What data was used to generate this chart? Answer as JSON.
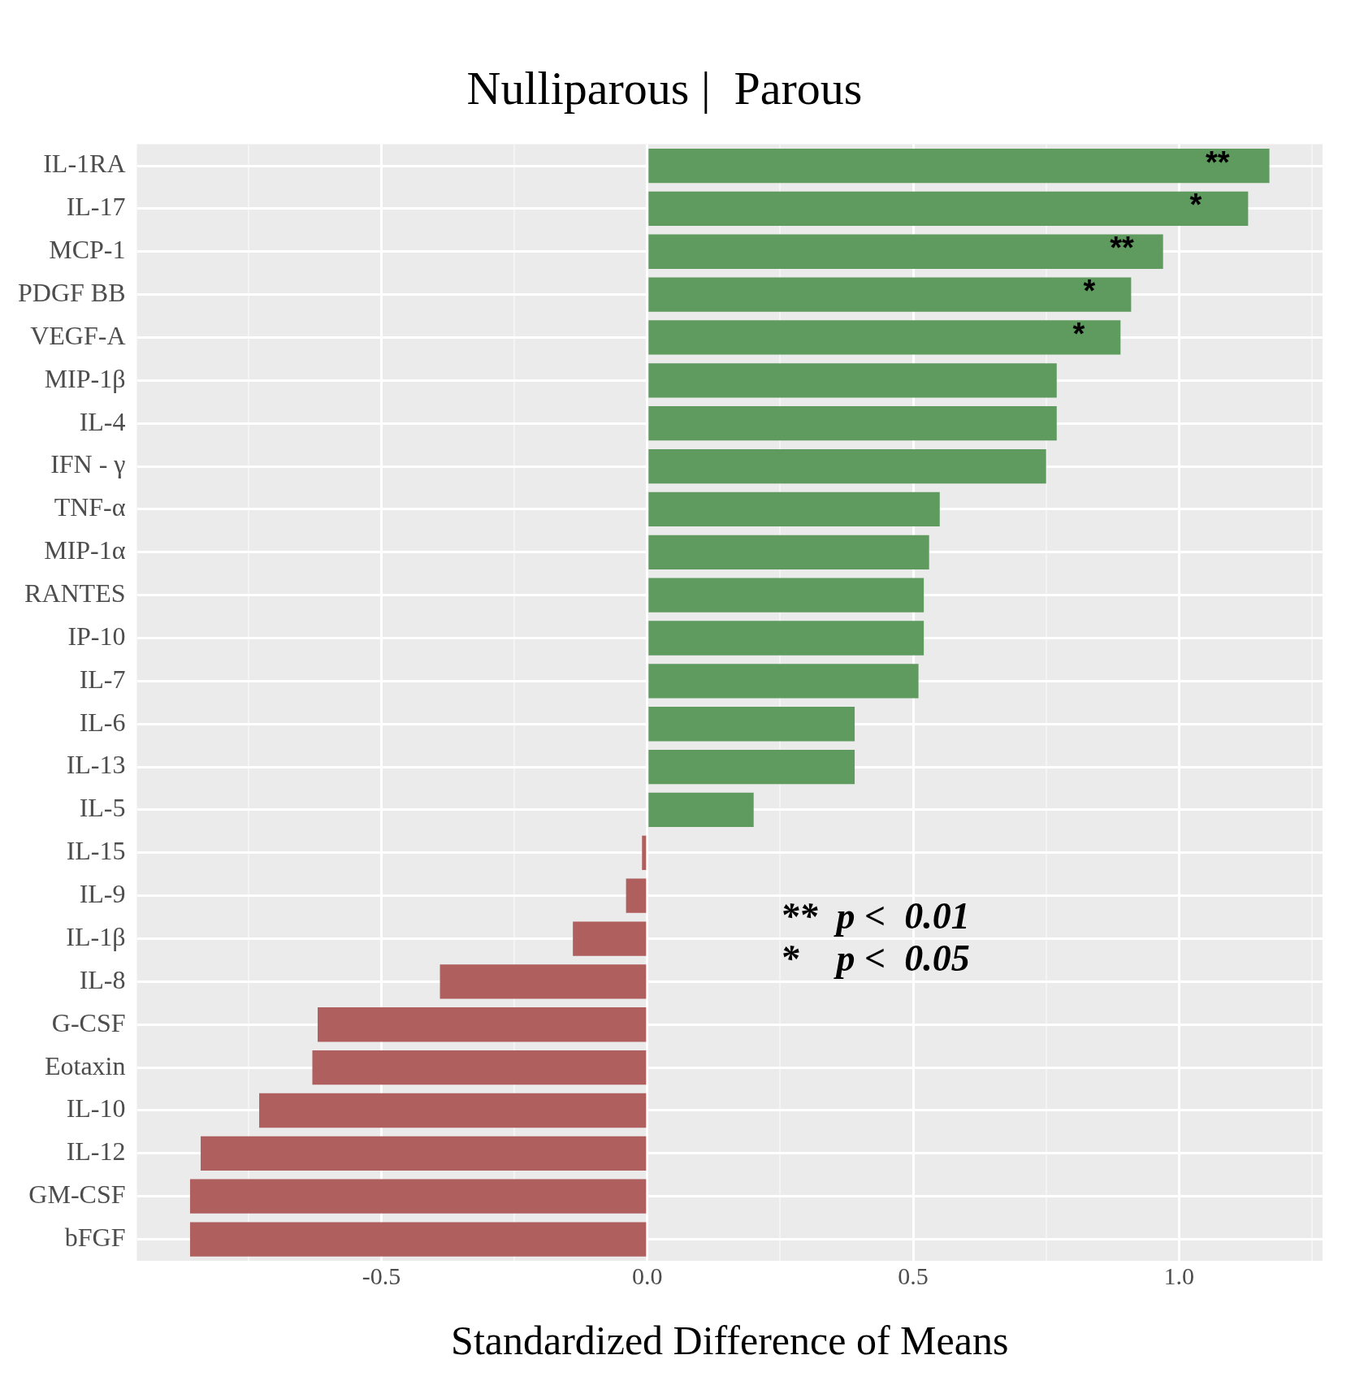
{
  "chart_data": {
    "type": "bar",
    "orientation": "horizontal",
    "title": "Nulliparous |  Parous",
    "xlabel": "Standardized Difference of Means",
    "categories": [
      "IL-1RA",
      "IL-17",
      "MCP-1",
      "PDGF BB",
      "VEGF-A",
      "MIP-1β",
      "IL-4",
      "IFN - γ",
      "TNF-α",
      "MIP-1α",
      "RANTES",
      "IP-10",
      "IL-7",
      "IL-6",
      "IL-13",
      "IL-5",
      "IL-15",
      "IL-9",
      "IL-1β",
      "IL-8",
      "G-CSF",
      "Eotaxin",
      "IL-10",
      "IL-12",
      "GM-CSF",
      "bFGF"
    ],
    "values": [
      1.17,
      1.13,
      0.97,
      0.91,
      0.89,
      0.77,
      0.77,
      0.75,
      0.55,
      0.53,
      0.52,
      0.52,
      0.51,
      0.39,
      0.39,
      0.2,
      -0.01,
      -0.04,
      -0.14,
      -0.39,
      -0.62,
      -0.63,
      -0.73,
      -0.84,
      -0.86,
      -0.86
    ],
    "colors": [
      "#5f9a5e",
      "#5f9a5e",
      "#5f9a5e",
      "#5f9a5e",
      "#5f9a5e",
      "#5f9a5e",
      "#5f9a5e",
      "#5f9a5e",
      "#5f9a5e",
      "#5f9a5e",
      "#5f9a5e",
      "#5f9a5e",
      "#5f9a5e",
      "#5f9a5e",
      "#5f9a5e",
      "#5f9a5e",
      "#b05f5f",
      "#b05f5f",
      "#b05f5f",
      "#b05f5f",
      "#b05f5f",
      "#b05f5f",
      "#b05f5f",
      "#b05f5f",
      "#b05f5f",
      "#b05f5f"
    ],
    "xlim": [
      -0.96,
      1.27
    ],
    "xticks": [
      {
        "value": -0.75,
        "label": null
      },
      -0.5,
      {
        "value": -0.25,
        "label": null
      },
      {
        "value": 0,
        "label": "0.0"
      },
      {
        "value": 0.25,
        "label": null
      },
      0.5,
      {
        "value": 0.75,
        "label": null
      },
      {
        "value": 1,
        "label": "1.0"
      },
      {
        "value": 1.25,
        "label": null
      }
    ],
    "grid": true,
    "legend": false,
    "annotations": [
      {
        "text": "**",
        "x": 1.05,
        "y": "IL-1RA"
      },
      {
        "text": "*",
        "x": 1.02,
        "y": "IL-17"
      },
      {
        "text": "**",
        "x": 0.87,
        "y": "MCP-1"
      },
      {
        "text": "*",
        "x": 0.82,
        "y": "PDGF BB"
      },
      {
        "text": "*",
        "x": 0.8,
        "y": "VEGF-A"
      },
      "**  p <  0.01",
      "*    p <  0.05"
    ]
  }
}
